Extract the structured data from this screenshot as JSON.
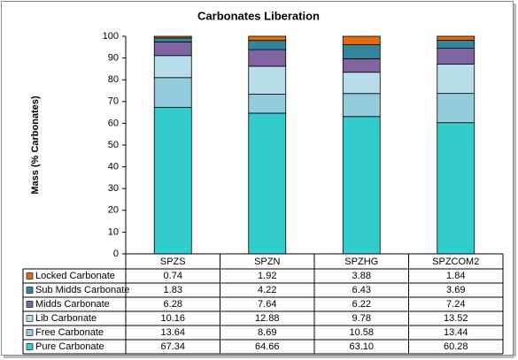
{
  "chart_data": {
    "type": "stacked_bar",
    "title": "Carbonates Liberation",
    "y_label": "Mass (% Carbonates)",
    "categories": [
      "SPZS",
      "SPZN",
      "SPZHG",
      "SPZCOM2"
    ],
    "ylim": [
      0,
      100
    ],
    "yticks": [
      0,
      10,
      20,
      30,
      40,
      50,
      60,
      70,
      80,
      90,
      100
    ],
    "grid": false,
    "series": [
      {
        "name": "Pure Carbonate",
        "color": "#33cccc",
        "values": [
          67.34,
          64.66,
          63.1,
          60.28
        ],
        "value_labels": [
          "67.34",
          "64.66",
          "63.10",
          "60.28"
        ]
      },
      {
        "name": "Free Carbonate",
        "color": "#93cddd",
        "values": [
          13.64,
          8.69,
          10.58,
          13.44
        ],
        "value_labels": [
          "13.64",
          "8.69",
          "10.58",
          "13.44"
        ]
      },
      {
        "name": "Lib Carbonate",
        "color": "#b7dee8",
        "values": [
          10.16,
          12.88,
          9.78,
          13.52
        ],
        "value_labels": [
          "10.16",
          "12.88",
          "9.78",
          "13.52"
        ]
      },
      {
        "name": "Midds Carbonate",
        "color": "#8064a2",
        "values": [
          6.28,
          7.64,
          6.22,
          7.24
        ],
        "value_labels": [
          "6.28",
          "7.64",
          "6.22",
          "7.24"
        ]
      },
      {
        "name": "Sub Midds Carbonate",
        "color": "#31859c",
        "values": [
          1.83,
          4.22,
          6.43,
          3.69
        ],
        "value_labels": [
          "1.83",
          "4.22",
          "6.43",
          "3.69"
        ]
      },
      {
        "name": "Locked Carbonate",
        "color": "#e46c0a",
        "values": [
          0.74,
          1.92,
          3.88,
          1.84
        ],
        "value_labels": [
          "0.74",
          "1.92",
          "3.88",
          "1.84"
        ]
      }
    ]
  }
}
